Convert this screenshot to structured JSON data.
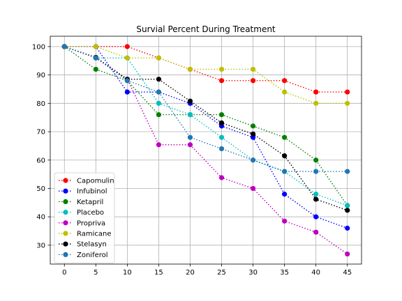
{
  "chart_data": {
    "type": "line",
    "title": "Survial Percent During Treatment",
    "xlabel": "",
    "ylabel": "",
    "x": [
      0,
      5,
      10,
      15,
      20,
      25,
      30,
      35,
      40,
      45
    ],
    "xlim": [
      -2.25,
      47.25
    ],
    "ylim": [
      23.35,
      103.65
    ],
    "xticks": [
      0,
      5,
      10,
      15,
      20,
      25,
      30,
      35,
      40,
      45
    ],
    "yticks": [
      30,
      40,
      50,
      60,
      70,
      80,
      90,
      100
    ],
    "grid": true,
    "legend_position": "lower-left",
    "series": [
      {
        "name": "Capomulin",
        "color": "#ff0000",
        "values": [
          100,
          100,
          100,
          96,
          92,
          88,
          88,
          88,
          84,
          84
        ]
      },
      {
        "name": "Infubinol",
        "color": "#0000ff",
        "values": [
          100,
          100,
          84,
          84,
          80,
          72,
          68,
          48,
          40,
          36
        ]
      },
      {
        "name": "Ketapril",
        "color": "#008000",
        "values": [
          100,
          92,
          88,
          76,
          76,
          76,
          72,
          68,
          60,
          44
        ]
      },
      {
        "name": "Placebo",
        "color": "#00bfbf",
        "values": [
          100,
          96,
          96,
          80,
          76,
          68,
          60,
          56,
          48,
          44
        ]
      },
      {
        "name": "Propriva",
        "color": "#bf00bf",
        "values": [
          100,
          96,
          88.5,
          65.4,
          65.4,
          53.8,
          50,
          38.5,
          34.6,
          26.9
        ]
      },
      {
        "name": "Ramicane",
        "color": "#bfbf00",
        "values": [
          100,
          100,
          96,
          96,
          92,
          92,
          92,
          84,
          80,
          80
        ]
      },
      {
        "name": "Stelasyn",
        "color": "#000000",
        "values": [
          100,
          96.2,
          88.5,
          88.5,
          80.8,
          73.1,
          69.2,
          61.5,
          46.2,
          42.3
        ]
      },
      {
        "name": "Zoniferol",
        "color": "#1f77b4",
        "values": [
          100,
          96,
          88,
          84,
          68,
          64,
          60,
          56,
          56,
          56
        ]
      }
    ]
  }
}
